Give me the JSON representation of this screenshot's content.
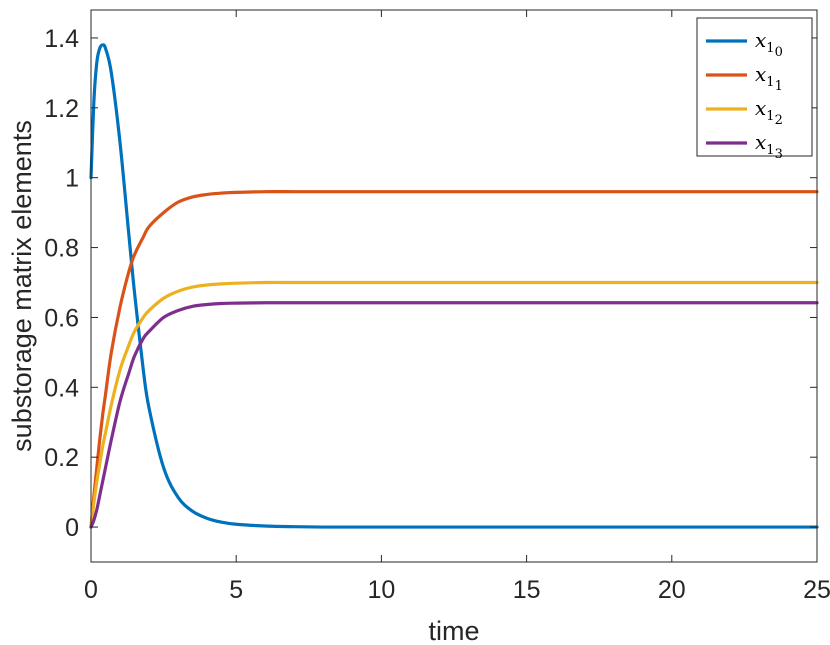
{
  "chart_data": {
    "type": "line",
    "xlabel": "time",
    "ylabel": "substorage  matrix  elements",
    "xlim": [
      0,
      25
    ],
    "ylim": [
      -0.1,
      1.48
    ],
    "xticks": [
      "0",
      "5",
      "10",
      "15",
      "20",
      "25"
    ],
    "yticks": [
      "0",
      "0.2",
      "0.4",
      "0.6",
      "0.8",
      "1",
      "1.2",
      "1.4"
    ],
    "grid": false,
    "legend_position": "top-right",
    "x": [
      0,
      0.1,
      0.2,
      0.3,
      0.4,
      0.5,
      0.7,
      1,
      1.3,
      1.5,
      1.8,
      2,
      2.5,
      3,
      3.5,
      4,
      4.5,
      5,
      6,
      7,
      8,
      9,
      10,
      12,
      15,
      20,
      25
    ],
    "series": [
      {
        "name": "x",
        "subscript": "1",
        "subsubscript": "0",
        "color": "#0072BD",
        "values": [
          1.0,
          1.22,
          1.33,
          1.37,
          1.38,
          1.37,
          1.3,
          1.1,
          0.84,
          0.67,
          0.45,
          0.34,
          0.17,
          0.085,
          0.045,
          0.025,
          0.014,
          0.008,
          0.003,
          0.001,
          0,
          0,
          0,
          0,
          0,
          0,
          0
        ]
      },
      {
        "name": "x",
        "subscript": "1",
        "subsubscript": "1",
        "color": "#D95319",
        "values": [
          0,
          0.09,
          0.17,
          0.25,
          0.32,
          0.38,
          0.5,
          0.63,
          0.73,
          0.78,
          0.83,
          0.86,
          0.9,
          0.93,
          0.945,
          0.952,
          0.956,
          0.958,
          0.96,
          0.96,
          0.96,
          0.96,
          0.96,
          0.96,
          0.96,
          0.96,
          0.96
        ]
      },
      {
        "name": "x",
        "subscript": "1",
        "subsubscript": "2",
        "color": "#EDB120",
        "values": [
          0,
          0.07,
          0.13,
          0.18,
          0.23,
          0.27,
          0.35,
          0.45,
          0.52,
          0.56,
          0.6,
          0.62,
          0.655,
          0.675,
          0.687,
          0.693,
          0.696,
          0.698,
          0.7,
          0.7,
          0.7,
          0.7,
          0.7,
          0.7,
          0.7,
          0.7,
          0.7
        ]
      },
      {
        "name": "x",
        "subscript": "1",
        "subsubscript": "3",
        "color": "#7E2F8E",
        "values": [
          0,
          0.02,
          0.05,
          0.09,
          0.13,
          0.17,
          0.25,
          0.36,
          0.44,
          0.49,
          0.54,
          0.56,
          0.6,
          0.62,
          0.632,
          0.637,
          0.64,
          0.641,
          0.642,
          0.642,
          0.642,
          0.642,
          0.642,
          0.642,
          0.642,
          0.642,
          0.642
        ]
      }
    ]
  }
}
